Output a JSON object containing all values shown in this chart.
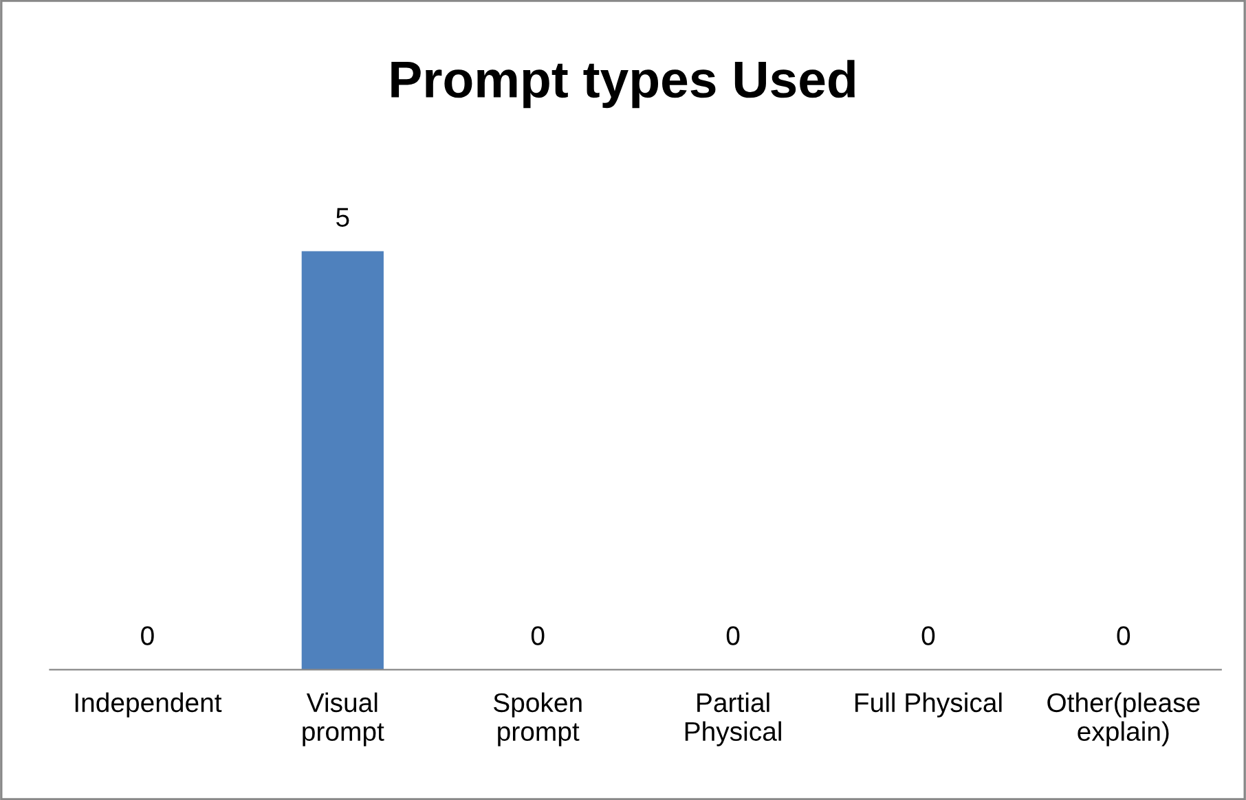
{
  "chart_data": {
    "type": "bar",
    "title": "Prompt types Used",
    "categories": [
      "Independent",
      "Visual\nprompt",
      "Spoken\nprompt",
      "Partial\nPhysical",
      "Full Physical",
      "Other(please\nexplain)"
    ],
    "values": [
      0,
      5,
      0,
      0,
      0,
      0
    ],
    "color": "#4f81bd",
    "tick_labels": "x",
    "data_labels": true,
    "grid": false,
    "legend": false
  }
}
